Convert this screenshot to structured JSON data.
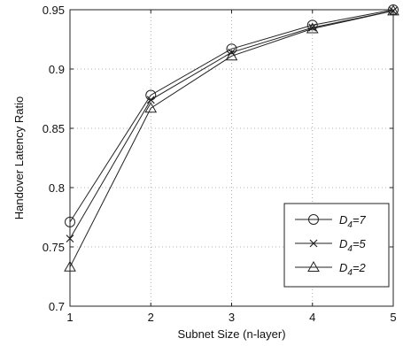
{
  "chart_data": {
    "type": "line",
    "xlabel": "Subnet Size (n-layer)",
    "ylabel": "Handover Latency Ratio",
    "xlim": [
      1,
      5
    ],
    "ylim": [
      0.7,
      0.95
    ],
    "x_ticks": [
      "1",
      "2",
      "3",
      "4",
      "5"
    ],
    "y_ticks": [
      "0.7",
      "0.75",
      "0.8",
      "0.85",
      "0.9",
      "0.95"
    ],
    "x": [
      1,
      2,
      3,
      4,
      5
    ],
    "grid": "dotted",
    "legend_position": "bottom-right",
    "series": [
      {
        "name": "D4=7",
        "name_base": "D",
        "name_sub": "4",
        "name_tail": "=7",
        "marker": "circle",
        "values": [
          0.771,
          0.878,
          0.917,
          0.937,
          0.95
        ]
      },
      {
        "name": "D4=5",
        "name_base": "D",
        "name_sub": "4",
        "name_tail": "=5",
        "marker": "x",
        "values": [
          0.757,
          0.874,
          0.914,
          0.935,
          0.949
        ]
      },
      {
        "name": "D4=2",
        "name_base": "D",
        "name_sub": "4",
        "name_tail": "=2",
        "marker": "triangle",
        "values": [
          0.733,
          0.867,
          0.911,
          0.934,
          0.949
        ]
      }
    ],
    "line_color": "#222222"
  }
}
